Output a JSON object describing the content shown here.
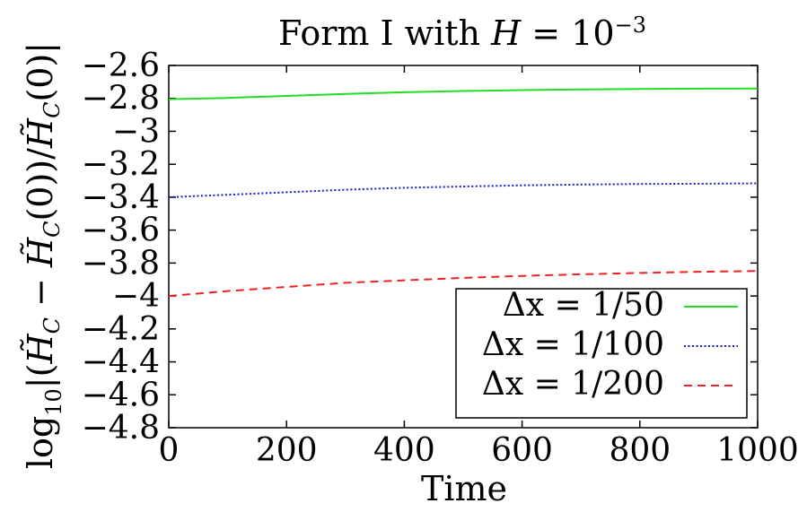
{
  "chart_data": {
    "type": "line",
    "title": "Form I with H = 10⁻³",
    "xlabel": "Time",
    "ylabel": "log₁₀|(H̃_C − H̃_C(0))/H̃_C(0)|",
    "xlim": [
      0,
      1000
    ],
    "ylim": [
      -4.8,
      -2.6
    ],
    "xticks": [
      "0",
      "200",
      "400",
      "600",
      "800",
      "1000"
    ],
    "yticks": [
      "−2.6",
      "−2.8",
      "−3",
      "−3.2",
      "−3.4",
      "−3.6",
      "−3.8",
      "−4",
      "−4.2",
      "−4.4",
      "−4.6",
      "−4.8"
    ],
    "grid": false,
    "legend_position": "bottom-right",
    "series": [
      {
        "name": "Δx = 1/50",
        "color": "#22dd22",
        "style": "solid",
        "x": [
          0,
          100,
          200,
          300,
          400,
          500,
          600,
          700,
          800,
          900,
          1000
        ],
        "y": [
          -2.805,
          -2.797,
          -2.785,
          -2.773,
          -2.763,
          -2.755,
          -2.75,
          -2.746,
          -2.743,
          -2.741,
          -2.74
        ]
      },
      {
        "name": "Δx = 1/100",
        "color": "#1a1acc",
        "style": "dotted",
        "x": [
          0,
          100,
          200,
          300,
          400,
          500,
          600,
          700,
          800,
          900,
          1000
        ],
        "y": [
          -3.4,
          -3.385,
          -3.37,
          -3.355,
          -3.343,
          -3.335,
          -3.328,
          -3.323,
          -3.32,
          -3.318,
          -3.316
        ]
      },
      {
        "name": "Δx = 1/200",
        "color": "#ee2222",
        "style": "dashed",
        "x": [
          0,
          100,
          200,
          300,
          400,
          500,
          600,
          700,
          800,
          900,
          1000
        ],
        "y": [
          -4.0,
          -3.97,
          -3.945,
          -3.92,
          -3.905,
          -3.89,
          -3.878,
          -3.868,
          -3.86,
          -3.853,
          -3.848
        ]
      }
    ]
  }
}
